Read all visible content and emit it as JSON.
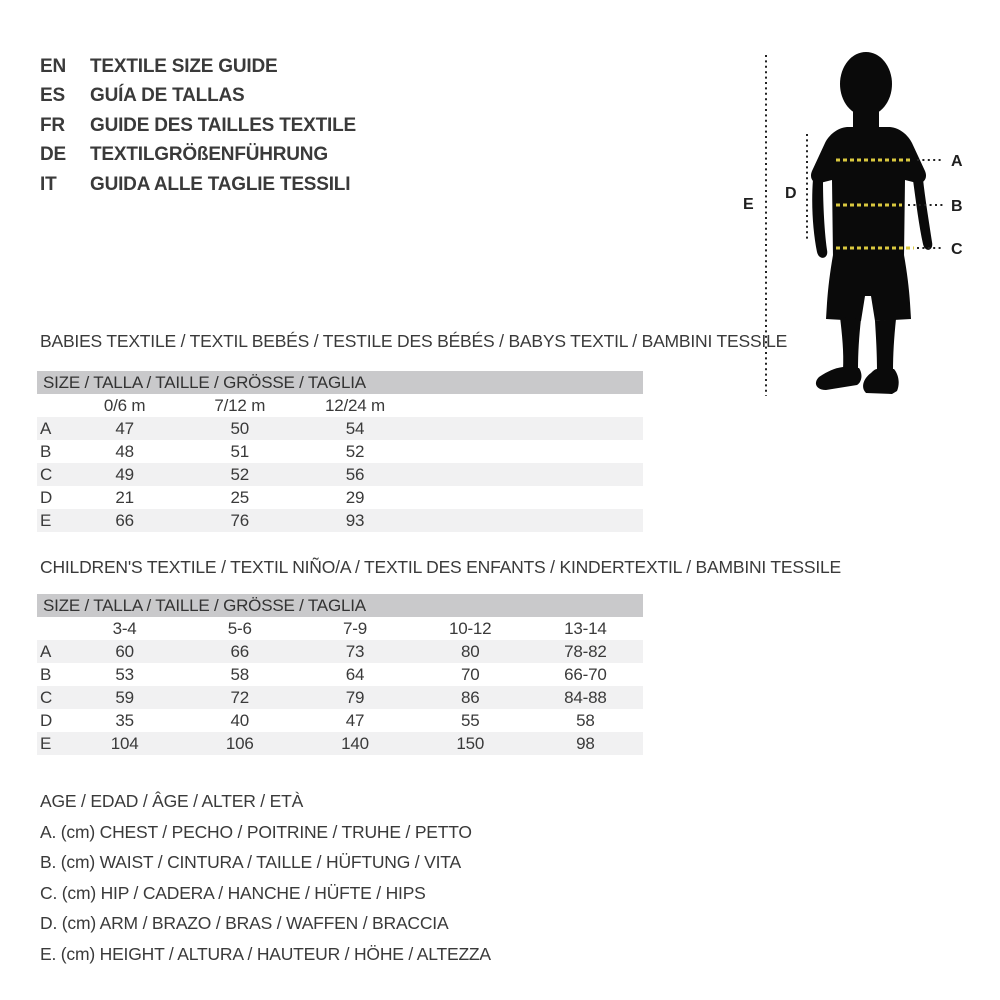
{
  "colors": {
    "accent_dash": "#d9c83f",
    "table_header_bg": "#c9c9cb",
    "row_alt_bg": "#f1f1f2",
    "text": "#3a3a3a",
    "silhouette": "#0a0a0a"
  },
  "languages": [
    {
      "code": "EN",
      "title": "TEXTILE SIZE GUIDE"
    },
    {
      "code": "ES",
      "title": "GUÍA DE TALLAS"
    },
    {
      "code": "FR",
      "title": "GUIDE DES TAILLES TEXTILE"
    },
    {
      "code": "DE",
      "title": "TEXTILGRÖßENFÜHRUNG"
    },
    {
      "code": "IT",
      "title": "GUIDA ALLE TAGLIE TESSILI"
    }
  ],
  "figure": {
    "description": "child silhouette with measurement lines",
    "labels": {
      "a": "A",
      "b": "B",
      "c": "C",
      "d": "D",
      "e": "E"
    }
  },
  "sections": [
    {
      "heading": "BABIES TEXTILE / TEXTIL BEBÉS / TESTILE DES BÉBÉS / BABYS TEXTIL / BAMBINI TESSILE",
      "table": {
        "header": "SIZE / TALLA / TAILLE / GRÖSSE / TAGLIA",
        "columns": [
          "0/6 m",
          "7/12 m",
          "12/24 m"
        ],
        "rows": [
          {
            "label": "A",
            "values": [
              "47",
              "50",
              "54"
            ]
          },
          {
            "label": "B",
            "values": [
              "48",
              "51",
              "52"
            ]
          },
          {
            "label": "C",
            "values": [
              "49",
              "52",
              "56"
            ]
          },
          {
            "label": "D",
            "values": [
              "21",
              "25",
              "29"
            ]
          },
          {
            "label": "E",
            "values": [
              "66",
              "76",
              "93"
            ]
          }
        ]
      }
    },
    {
      "heading": "CHILDREN'S TEXTILE / TEXTIL NIÑO/A / TEXTIL DES ENFANTS / KINDERTEXTIL / BAMBINI TESSILE",
      "table": {
        "header": "SIZE / TALLA / TAILLE / GRÖSSE / TAGLIA",
        "columns": [
          "3-4",
          "5-6",
          "7-9",
          "10-12",
          "13-14"
        ],
        "rows": [
          {
            "label": "A",
            "values": [
              "60",
              "66",
              "73",
              "80",
              "78-82"
            ]
          },
          {
            "label": "B",
            "values": [
              "53",
              "58",
              "64",
              "70",
              "66-70"
            ]
          },
          {
            "label": "C",
            "values": [
              "59",
              "72",
              "79",
              "86",
              "84-88"
            ]
          },
          {
            "label": "D",
            "values": [
              "35",
              "40",
              "47",
              "55",
              "58"
            ]
          },
          {
            "label": "E",
            "values": [
              "104",
              "106",
              "140",
              "150",
              "98"
            ]
          }
        ]
      }
    }
  ],
  "legend": [
    "AGE / EDAD / ÂGE / ALTER / ETÀ",
    "A. (cm) CHEST / PECHO / POITRINE / TRUHE / PETTO",
    "B. (cm) WAIST / CINTURA / TAILLE / HÜFTUNG / VITA",
    "C. (cm) HIP / CADERA / HANCHE / HÜFTE / HIPS",
    "D. (cm) ARM / BRAZO / BRAS / WAFFEN / BRACCIA",
    "E. (cm) HEIGHT / ALTURA / HAUTEUR / HÖHE / ALTEZZA"
  ]
}
